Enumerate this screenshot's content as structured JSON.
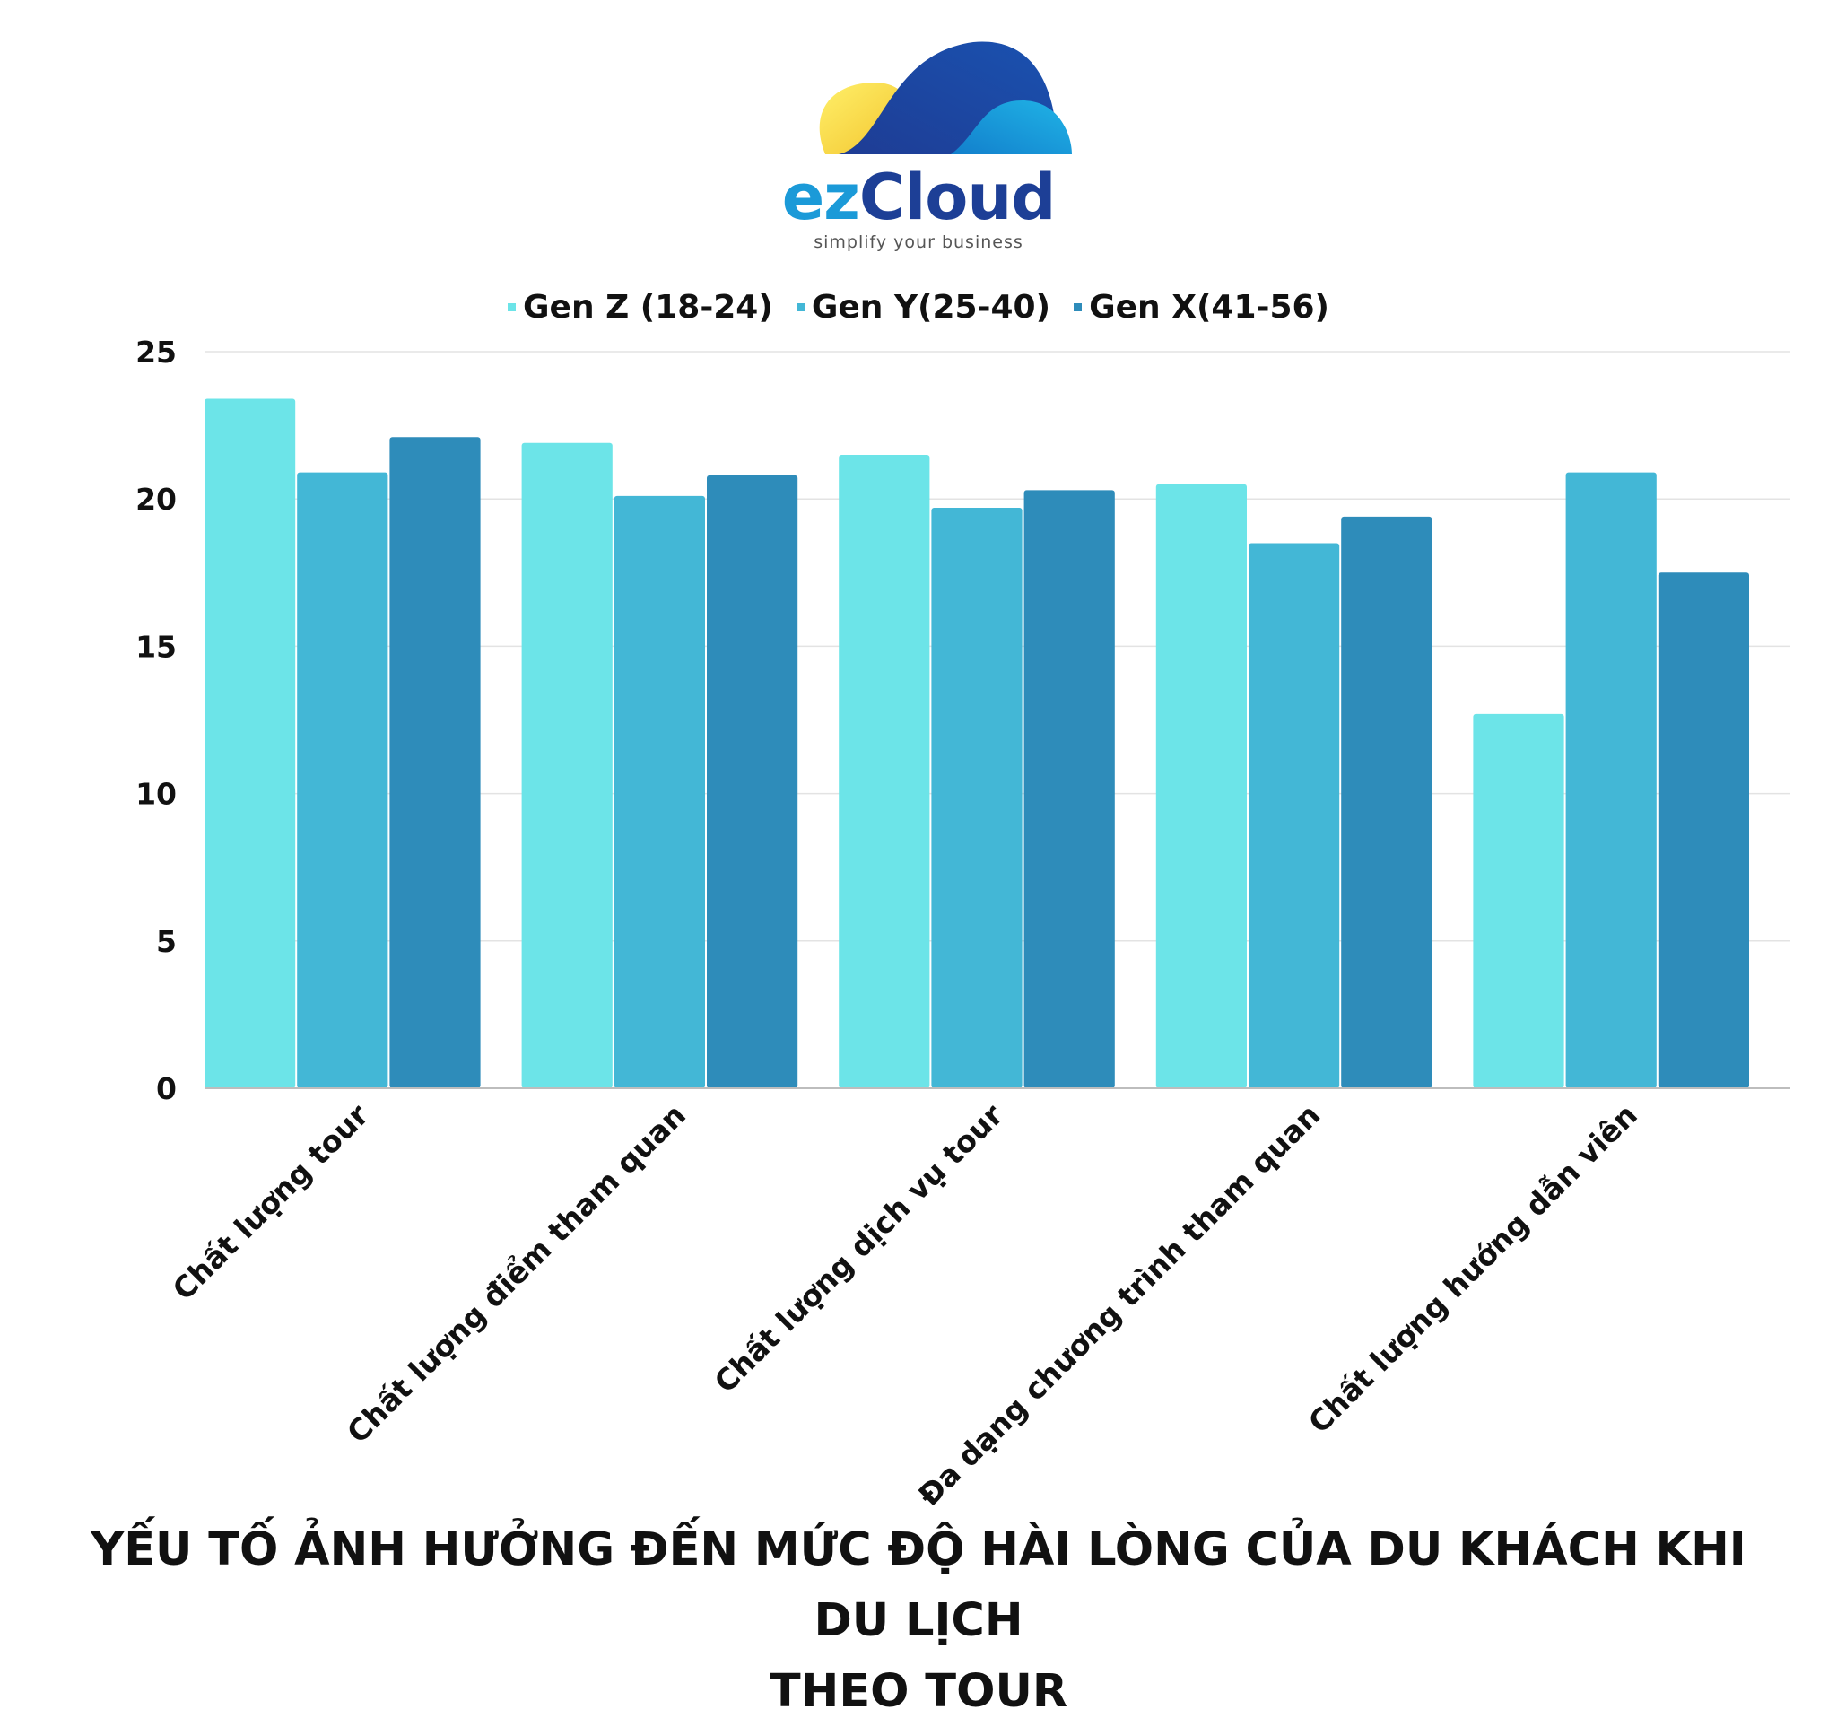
{
  "brand": {
    "name_part1": "ez",
    "name_part2": "Cloud",
    "tagline": "simplify your business"
  },
  "colors": {
    "logo_sun": "#f7d84a",
    "logo_cloud_dark": "#1e3c94",
    "logo_cloud_light": "#19a3de",
    "grid": "#e3e3e3",
    "axis": "#bdbdbd"
  },
  "chart_data": {
    "type": "bar",
    "title_line1": "YẾU TỐ ẢNH HƯỞNG ĐẾN MỨC ĐỘ HÀI LÒNG CỦA DU KHÁCH KHI DU LỊCH",
    "title_line2": "THEO TOUR",
    "xlabel": "",
    "ylabel": "",
    "ylim": [
      0,
      25
    ],
    "yticks": [
      "0",
      "5",
      "10",
      "15",
      "20",
      "25"
    ],
    "grid": true,
    "legend_position": "top-center",
    "categories": [
      "Chất lượng tour",
      "Chất lượng điểm tham quan",
      "Chất lượng dịch vụ tour",
      "Đa dạng chương trình tham quan",
      "Chất lượng hướng dẫn viên"
    ],
    "series": [
      {
        "name": "Gen Z (18-24)",
        "color": "#6ce4e8",
        "values": [
          23.4,
          21.9,
          21.5,
          20.5,
          12.7
        ]
      },
      {
        "name": "Gen Y(25-40)",
        "color": "#43b7d6",
        "values": [
          20.9,
          20.1,
          19.7,
          18.5,
          20.9
        ]
      },
      {
        "name": "Gen X(41-56)",
        "color": "#2e8cba",
        "values": [
          22.1,
          20.8,
          20.3,
          19.4,
          17.5
        ]
      }
    ]
  }
}
